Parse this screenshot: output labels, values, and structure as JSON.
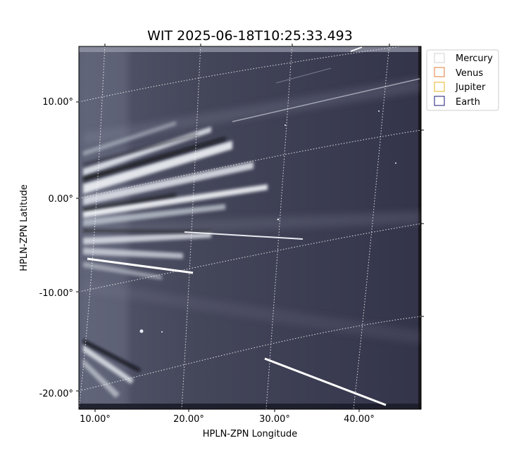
{
  "chart_data": {
    "type": "image",
    "title": "WIT 2025-06-18T10:25:33.493",
    "xlabel": "HPLN-ZPN Longitude",
    "ylabel": "HPLN-ZPN Latitude",
    "x_ticks": [
      "10.00°",
      "20.00°",
      "30.00°",
      "40.00°"
    ],
    "y_ticks": [
      "10.00°",
      "0.00°",
      "-10.00°",
      "-20.00°"
    ],
    "grid": true,
    "legend_position": "top-right, outside plot",
    "legend": [
      {
        "name": "Mercury",
        "color": "#d0d0d0"
      },
      {
        "name": "Venus",
        "color": "#e07b39"
      },
      {
        "name": "Jupiter",
        "color": "#e6b422"
      },
      {
        "name": "Earth",
        "color": "#1a1a7a"
      }
    ],
    "colors": {
      "background_plot": "#3a3b4e",
      "streamer": "#dfe4ea",
      "grid": "#ffffff"
    }
  }
}
